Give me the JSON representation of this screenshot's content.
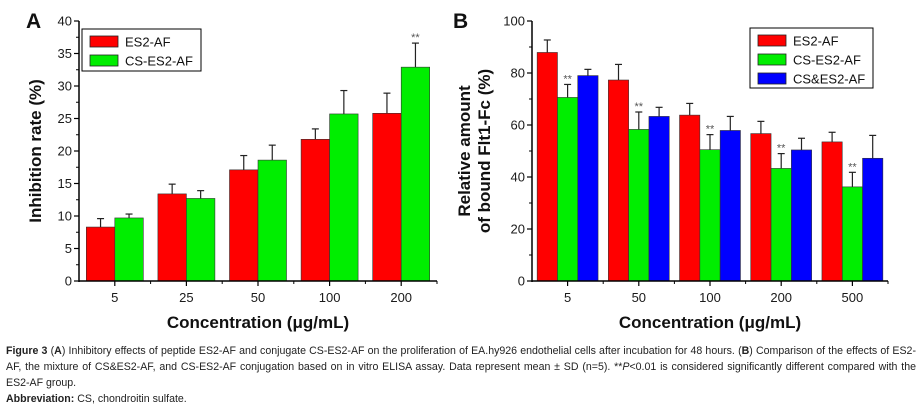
{
  "chart_data": [
    {
      "type": "bar",
      "panel": "A",
      "title": "",
      "xlabel": "Concentration (μg/mL)",
      "ylabel": "Inhibition rate (%)",
      "ylim": [
        0,
        40
      ],
      "yticks": [
        0,
        5,
        10,
        15,
        20,
        25,
        30,
        35,
        40
      ],
      "categories": [
        "5",
        "25",
        "50",
        "100",
        "200"
      ],
      "legend_position": "top-left",
      "series": [
        {
          "name": "ES2-AF",
          "color": "#ff0000",
          "values": [
            8.3,
            13.4,
            17.1,
            21.8,
            25.8
          ],
          "errors": [
            1.3,
            1.5,
            2.2,
            1.6,
            3.1
          ]
        },
        {
          "name": "CS-ES2-AF",
          "color": "#00ee00",
          "values": [
            9.7,
            12.7,
            18.6,
            25.7,
            32.9
          ],
          "errors": [
            0.6,
            1.2,
            2.3,
            3.6,
            3.7
          ]
        }
      ],
      "significance": [
        {
          "series": 1,
          "category": 4,
          "label": "**"
        }
      ]
    },
    {
      "type": "bar",
      "panel": "B",
      "title": "",
      "xlabel": "Concentration (μg/mL)",
      "ylabel_lines": [
        "Relative amount",
        "of bound Flt1-Fc (%)"
      ],
      "ylim": [
        0,
        100
      ],
      "yticks": [
        0,
        20,
        40,
        60,
        80,
        100
      ],
      "categories": [
        "5",
        "50",
        "100",
        "200",
        "500"
      ],
      "legend_position": "top-right",
      "series": [
        {
          "name": "ES2-AF",
          "color": "#ff0000",
          "values": [
            87.9,
            77.3,
            63.8,
            56.7,
            53.5
          ],
          "errors": [
            4.8,
            6.0,
            4.5,
            4.7,
            3.7
          ]
        },
        {
          "name": "CS-ES2-AF",
          "color": "#00ee00",
          "values": [
            70.6,
            58.3,
            50.5,
            43.3,
            36.2
          ],
          "errors": [
            5.0,
            6.7,
            5.8,
            5.7,
            5.6
          ]
        },
        {
          "name": "CS&ES2-AF",
          "color": "#0000ff",
          "values": [
            79.0,
            63.3,
            57.9,
            50.4,
            47.2
          ],
          "errors": [
            2.4,
            3.5,
            5.4,
            4.5,
            8.8
          ]
        }
      ],
      "significance": [
        {
          "series": 1,
          "category": 0,
          "label": "**"
        },
        {
          "series": 1,
          "category": 1,
          "label": "**"
        },
        {
          "series": 1,
          "category": 2,
          "label": "**"
        },
        {
          "series": 1,
          "category": 3,
          "label": "**"
        },
        {
          "series": 1,
          "category": 4,
          "label": "**"
        }
      ]
    }
  ],
  "caption": {
    "figure_label": "Figure 3",
    "part_a_label": "A",
    "part_a_text": "Inhibitory effects of peptide ES2-AF and conjugate CS-ES2-AF on the proliferation of EA.hy926 endothelial cells after incubation for 48 hours. (",
    "part_b_label": "B",
    "part_b_text": ") Comparison of the effects of ES2-AF, the mixture of CS&ES2-AF, and CS-ES2-AF conjugation based on in vitro ELISA assay. Data represent mean ± SD (n=5). **",
    "p_italic": "P",
    "sig_text": "<0.01 is considered significantly different compared with the ES2-AF group.",
    "abbrev_label": "Abbreviation:",
    "abbrev_text": " CS, chondroitin sulfate."
  }
}
